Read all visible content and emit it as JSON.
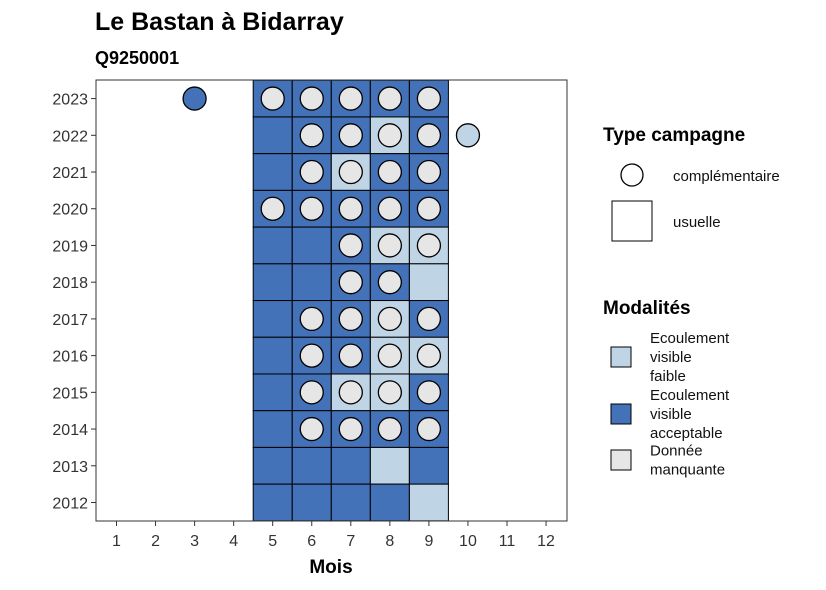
{
  "chart_data": {
    "type": "heatmap",
    "title": "Le Bastan à Bidarray",
    "subtitle": "Q9250001",
    "xlabel": "Mois",
    "ylabel": "",
    "x_ticks": [
      1,
      2,
      3,
      4,
      5,
      6,
      7,
      8,
      9,
      10,
      11,
      12
    ],
    "y_ticks": [
      2012,
      2013,
      2014,
      2015,
      2016,
      2017,
      2018,
      2019,
      2020,
      2021,
      2022,
      2023
    ],
    "grid": false,
    "colors": {
      "faible": "#BFD5E6",
      "acceptable": "#4472B8",
      "manquante": "#E6E6E6",
      "border": "#000000"
    },
    "usuelle": [
      {
        "year": 2023,
        "month": 5,
        "mod": "acceptable"
      },
      {
        "year": 2023,
        "month": 6,
        "mod": "acceptable"
      },
      {
        "year": 2023,
        "month": 7,
        "mod": "acceptable"
      },
      {
        "year": 2023,
        "month": 8,
        "mod": "acceptable"
      },
      {
        "year": 2023,
        "month": 9,
        "mod": "acceptable"
      },
      {
        "year": 2022,
        "month": 5,
        "mod": "acceptable"
      },
      {
        "year": 2022,
        "month": 6,
        "mod": "acceptable"
      },
      {
        "year": 2022,
        "month": 7,
        "mod": "acceptable"
      },
      {
        "year": 2022,
        "month": 8,
        "mod": "faible"
      },
      {
        "year": 2022,
        "month": 9,
        "mod": "acceptable"
      },
      {
        "year": 2021,
        "month": 5,
        "mod": "acceptable"
      },
      {
        "year": 2021,
        "month": 6,
        "mod": "acceptable"
      },
      {
        "year": 2021,
        "month": 7,
        "mod": "faible"
      },
      {
        "year": 2021,
        "month": 8,
        "mod": "acceptable"
      },
      {
        "year": 2021,
        "month": 9,
        "mod": "acceptable"
      },
      {
        "year": 2020,
        "month": 5,
        "mod": "acceptable"
      },
      {
        "year": 2020,
        "month": 6,
        "mod": "acceptable"
      },
      {
        "year": 2020,
        "month": 7,
        "mod": "acceptable"
      },
      {
        "year": 2020,
        "month": 8,
        "mod": "acceptable"
      },
      {
        "year": 2020,
        "month": 9,
        "mod": "acceptable"
      },
      {
        "year": 2019,
        "month": 5,
        "mod": "acceptable"
      },
      {
        "year": 2019,
        "month": 6,
        "mod": "acceptable"
      },
      {
        "year": 2019,
        "month": 7,
        "mod": "acceptable"
      },
      {
        "year": 2019,
        "month": 8,
        "mod": "faible"
      },
      {
        "year": 2019,
        "month": 9,
        "mod": "faible"
      },
      {
        "year": 2018,
        "month": 5,
        "mod": "acceptable"
      },
      {
        "year": 2018,
        "month": 6,
        "mod": "acceptable"
      },
      {
        "year": 2018,
        "month": 7,
        "mod": "acceptable"
      },
      {
        "year": 2018,
        "month": 8,
        "mod": "acceptable"
      },
      {
        "year": 2018,
        "month": 9,
        "mod": "faible"
      },
      {
        "year": 2017,
        "month": 5,
        "mod": "acceptable"
      },
      {
        "year": 2017,
        "month": 6,
        "mod": "acceptable"
      },
      {
        "year": 2017,
        "month": 7,
        "mod": "acceptable"
      },
      {
        "year": 2017,
        "month": 8,
        "mod": "faible"
      },
      {
        "year": 2017,
        "month": 9,
        "mod": "acceptable"
      },
      {
        "year": 2016,
        "month": 5,
        "mod": "acceptable"
      },
      {
        "year": 2016,
        "month": 6,
        "mod": "acceptable"
      },
      {
        "year": 2016,
        "month": 7,
        "mod": "acceptable"
      },
      {
        "year": 2016,
        "month": 8,
        "mod": "faible"
      },
      {
        "year": 2016,
        "month": 9,
        "mod": "faible"
      },
      {
        "year": 2015,
        "month": 5,
        "mod": "acceptable"
      },
      {
        "year": 2015,
        "month": 6,
        "mod": "acceptable"
      },
      {
        "year": 2015,
        "month": 7,
        "mod": "faible"
      },
      {
        "year": 2015,
        "month": 8,
        "mod": "faible"
      },
      {
        "year": 2015,
        "month": 9,
        "mod": "acceptable"
      },
      {
        "year": 2014,
        "month": 5,
        "mod": "acceptable"
      },
      {
        "year": 2014,
        "month": 6,
        "mod": "acceptable"
      },
      {
        "year": 2014,
        "month": 7,
        "mod": "acceptable"
      },
      {
        "year": 2014,
        "month": 8,
        "mod": "acceptable"
      },
      {
        "year": 2014,
        "month": 9,
        "mod": "acceptable"
      },
      {
        "year": 2013,
        "month": 5,
        "mod": "acceptable"
      },
      {
        "year": 2013,
        "month": 6,
        "mod": "acceptable"
      },
      {
        "year": 2013,
        "month": 7,
        "mod": "acceptable"
      },
      {
        "year": 2013,
        "month": 8,
        "mod": "faible"
      },
      {
        "year": 2013,
        "month": 9,
        "mod": "acceptable"
      },
      {
        "year": 2012,
        "month": 5,
        "mod": "acceptable"
      },
      {
        "year": 2012,
        "month": 6,
        "mod": "acceptable"
      },
      {
        "year": 2012,
        "month": 7,
        "mod": "acceptable"
      },
      {
        "year": 2012,
        "month": 8,
        "mod": "acceptable"
      },
      {
        "year": 2012,
        "month": 9,
        "mod": "faible"
      }
    ],
    "complementaire": [
      {
        "year": 2023,
        "month": 3,
        "mod": "acceptable"
      },
      {
        "year": 2023,
        "month": 5,
        "mod": "manquante"
      },
      {
        "year": 2023,
        "month": 6,
        "mod": "manquante"
      },
      {
        "year": 2023,
        "month": 7,
        "mod": "manquante"
      },
      {
        "year": 2023,
        "month": 8,
        "mod": "manquante"
      },
      {
        "year": 2023,
        "month": 9,
        "mod": "manquante"
      },
      {
        "year": 2022,
        "month": 6,
        "mod": "manquante"
      },
      {
        "year": 2022,
        "month": 7,
        "mod": "manquante"
      },
      {
        "year": 2022,
        "month": 8,
        "mod": "manquante"
      },
      {
        "year": 2022,
        "month": 9,
        "mod": "manquante"
      },
      {
        "year": 2022,
        "month": 10,
        "mod": "faible"
      },
      {
        "year": 2021,
        "month": 6,
        "mod": "manquante"
      },
      {
        "year": 2021,
        "month": 7,
        "mod": "manquante"
      },
      {
        "year": 2021,
        "month": 8,
        "mod": "manquante"
      },
      {
        "year": 2021,
        "month": 9,
        "mod": "manquante"
      },
      {
        "year": 2020,
        "month": 5,
        "mod": "manquante"
      },
      {
        "year": 2020,
        "month": 6,
        "mod": "manquante"
      },
      {
        "year": 2020,
        "month": 7,
        "mod": "manquante"
      },
      {
        "year": 2020,
        "month": 8,
        "mod": "manquante"
      },
      {
        "year": 2020,
        "month": 9,
        "mod": "manquante"
      },
      {
        "year": 2019,
        "month": 7,
        "mod": "manquante"
      },
      {
        "year": 2019,
        "month": 8,
        "mod": "manquante"
      },
      {
        "year": 2019,
        "month": 9,
        "mod": "manquante"
      },
      {
        "year": 2018,
        "month": 7,
        "mod": "manquante"
      },
      {
        "year": 2018,
        "month": 8,
        "mod": "manquante"
      },
      {
        "year": 2017,
        "month": 6,
        "mod": "manquante"
      },
      {
        "year": 2017,
        "month": 7,
        "mod": "manquante"
      },
      {
        "year": 2017,
        "month": 8,
        "mod": "manquante"
      },
      {
        "year": 2017,
        "month": 9,
        "mod": "manquante"
      },
      {
        "year": 2016,
        "month": 6,
        "mod": "manquante"
      },
      {
        "year": 2016,
        "month": 7,
        "mod": "manquante"
      },
      {
        "year": 2016,
        "month": 8,
        "mod": "manquante"
      },
      {
        "year": 2016,
        "month": 9,
        "mod": "manquante"
      },
      {
        "year": 2015,
        "month": 6,
        "mod": "manquante"
      },
      {
        "year": 2015,
        "month": 7,
        "mod": "manquante"
      },
      {
        "year": 2015,
        "month": 8,
        "mod": "manquante"
      },
      {
        "year": 2015,
        "month": 9,
        "mod": "manquante"
      },
      {
        "year": 2014,
        "month": 6,
        "mod": "manquante"
      },
      {
        "year": 2014,
        "month": 7,
        "mod": "manquante"
      },
      {
        "year": 2014,
        "month": 8,
        "mod": "manquante"
      },
      {
        "year": 2014,
        "month": 9,
        "mod": "manquante"
      }
    ],
    "legend": {
      "placement": "right",
      "type_title": "Type campagne",
      "type_items": [
        {
          "key": "complementaire",
          "label": "complémentaire",
          "shape": "circle"
        },
        {
          "key": "usuelle",
          "label": "usuelle",
          "shape": "square"
        }
      ],
      "mod_title": "Modalités",
      "mod_items": [
        {
          "key": "faible",
          "lines": [
            "Ecoulement",
            "visible",
            "faible"
          ]
        },
        {
          "key": "acceptable",
          "lines": [
            "Ecoulement",
            "visible",
            "acceptable"
          ]
        },
        {
          "key": "manquante",
          "lines": [
            "Donnée",
            "manquante"
          ]
        }
      ]
    }
  }
}
